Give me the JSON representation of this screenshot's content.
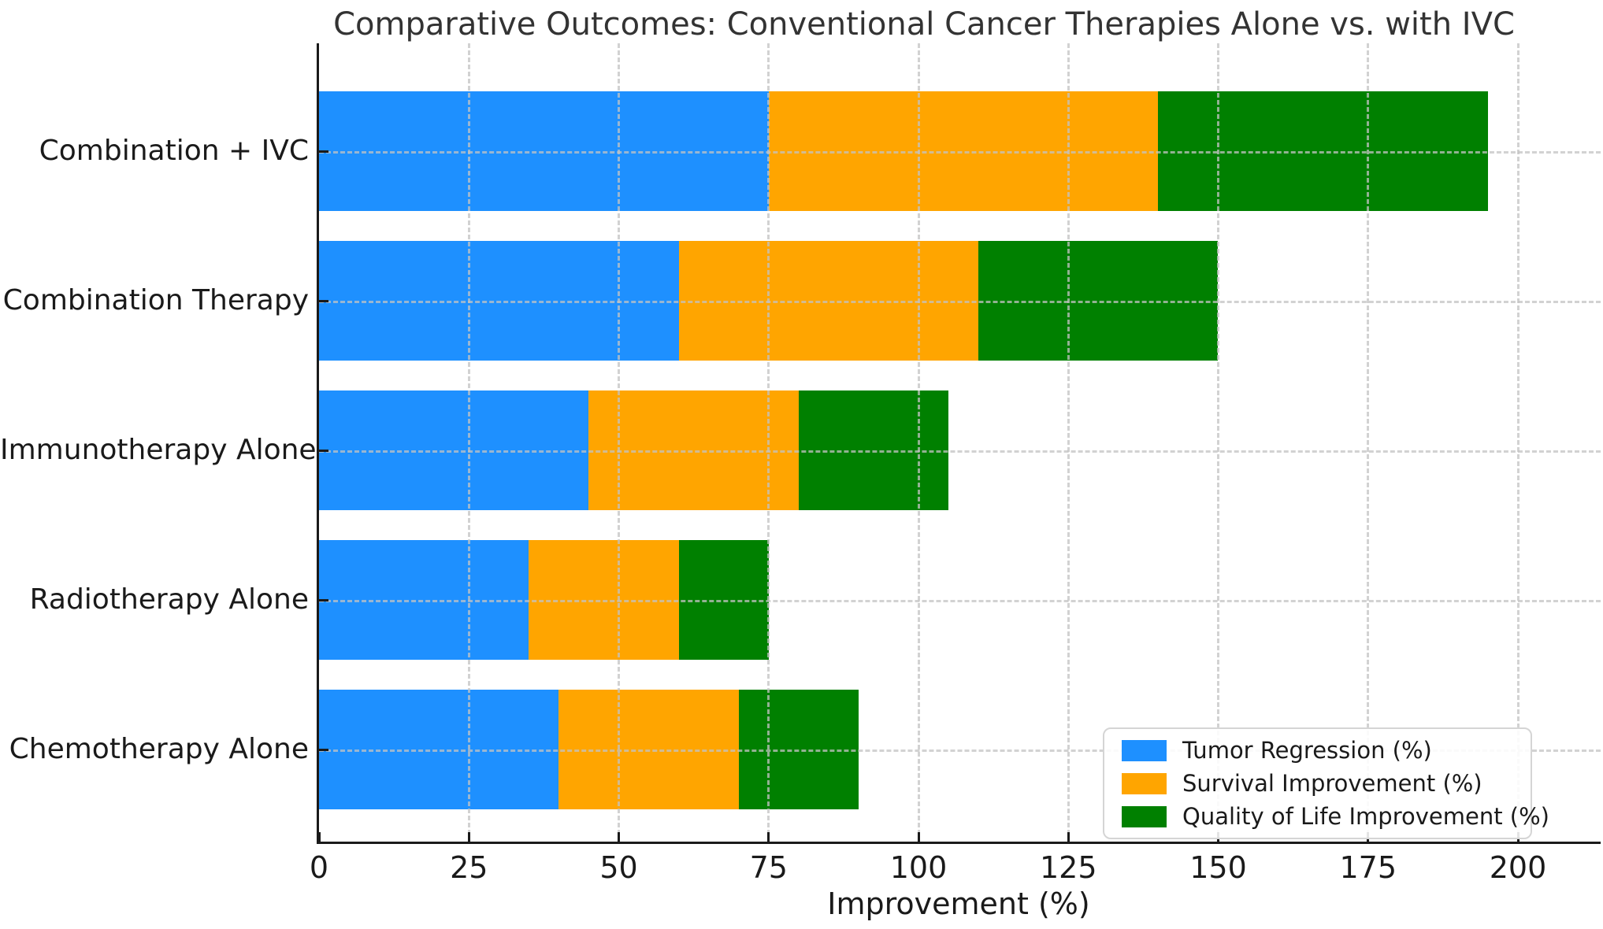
{
  "chart_data": {
    "type": "bar",
    "orientation": "horizontal",
    "stacked": true,
    "title": "Comparative Outcomes: Conventional Cancer Therapies Alone vs. with IVC",
    "xlabel": "Improvement (%)",
    "ylabel": "",
    "categories_top_to_bottom": [
      "Combination + IVC",
      "Combination Therapy",
      "Immunotherapy Alone",
      "Radiotherapy Alone",
      "Chemotherapy Alone"
    ],
    "series": [
      {
        "name": "Tumor Regression (%)",
        "color": "#1E90FF",
        "values": [
          75,
          60,
          45,
          35,
          40
        ]
      },
      {
        "name": "Survival Improvement (%)",
        "color": "#FFA500",
        "values": [
          65,
          50,
          35,
          25,
          30
        ]
      },
      {
        "name": "Quality of Life Improvement (%)",
        "color": "#008000",
        "values": [
          55,
          40,
          25,
          15,
          20
        ]
      }
    ],
    "stack_totals": [
      195,
      150,
      105,
      75,
      90
    ],
    "xticks": [
      0,
      25,
      50,
      75,
      100,
      125,
      150,
      175,
      200
    ],
    "xlim": [
      0,
      213
    ],
    "grid": "dashed-both-axes",
    "legend_position": "lower right"
  },
  "colors": {
    "tumor_regression": "#1E90FF",
    "survival_improvement": "#FFA500",
    "quality_of_life": "#008000",
    "gridline": "#c3c3c3",
    "axis": "#1a1a1a",
    "title_text": "#333333"
  }
}
